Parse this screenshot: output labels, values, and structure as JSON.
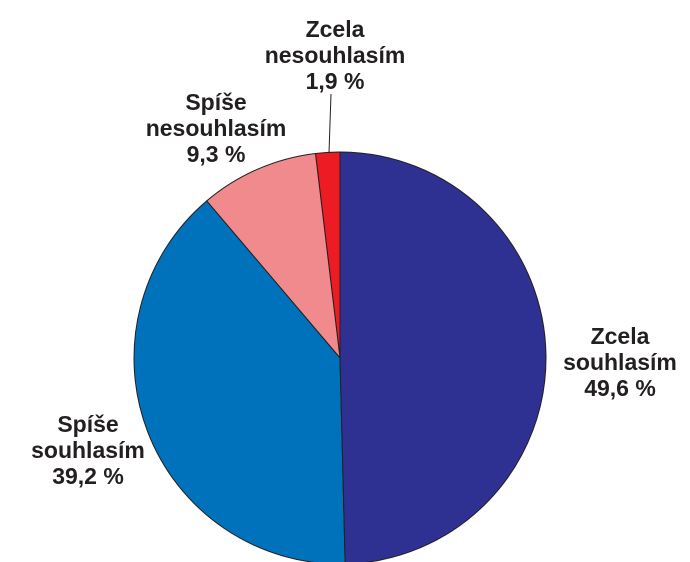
{
  "chart_data": {
    "type": "pie",
    "categories": [
      "Zcela souhlasím",
      "Spíše souhlasím",
      "Spíše nesouhlasím",
      "Zcela nesouhlasím"
    ],
    "values": [
      49.6,
      39.2,
      9.3,
      1.9
    ],
    "value_labels": [
      "49,6 %",
      "39,2 %",
      "9,3 %",
      "1,9 %"
    ],
    "colors": [
      "#2e3192",
      "#0072bc",
      "#f08a8c",
      "#ed1c24"
    ]
  }
}
